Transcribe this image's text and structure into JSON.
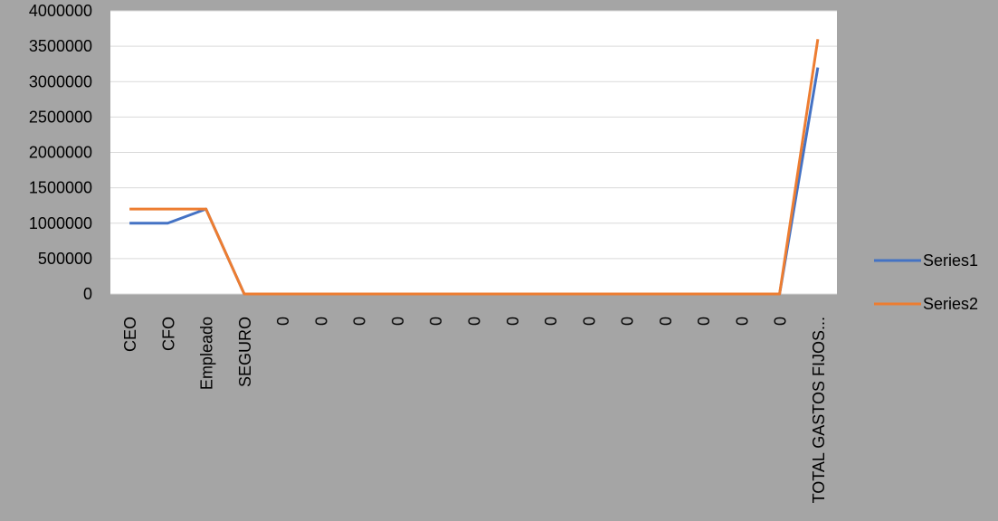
{
  "chart_data": {
    "type": "line",
    "categories": [
      "CEO",
      "CFO",
      "Empleado",
      "SEGURO",
      "0",
      "0",
      "0",
      "0",
      "0",
      "0",
      "0",
      "0",
      "0",
      "0",
      "0",
      "0",
      "0",
      "0",
      "TOTAL GASTOS FIJOS..."
    ],
    "series": [
      {
        "name": "Series1",
        "color": "#4472c4",
        "values": [
          1000000,
          1000000,
          1200000,
          0,
          0,
          0,
          0,
          0,
          0,
          0,
          0,
          0,
          0,
          0,
          0,
          0,
          0,
          0,
          3200000
        ]
      },
      {
        "name": "Series2",
        "color": "#ed7d31",
        "values": [
          1200000,
          1200000,
          1200000,
          0,
          0,
          0,
          0,
          0,
          0,
          0,
          0,
          0,
          0,
          0,
          0,
          0,
          0,
          0,
          3600000
        ]
      }
    ],
    "ylim": [
      0,
      4000000
    ],
    "yticks": [
      "0",
      "500000",
      "1000000",
      "1500000",
      "2000000",
      "2500000",
      "3000000",
      "3500000",
      "4000000"
    ],
    "grid": true,
    "legend": "right",
    "colors": {
      "plot_background": "#ffffff",
      "page_background": "#a5a5a5",
      "gridline": "#d9d9d9"
    }
  }
}
